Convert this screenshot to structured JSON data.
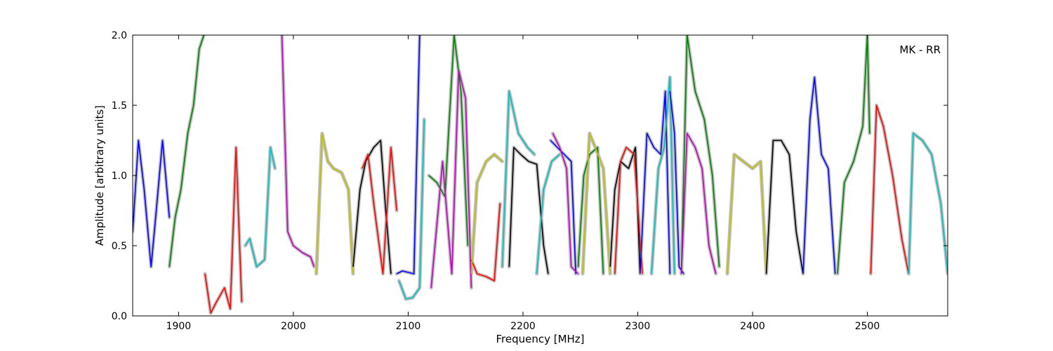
{
  "chart_data": {
    "type": "line",
    "title": "",
    "annotation": "MK - RR",
    "xlabel": "Frequency [MHz]",
    "ylabel": "Amplitude [arbitrary units]",
    "xlim": [
      1860,
      2570
    ],
    "ylim": [
      0.0,
      2.0
    ],
    "xticks": [
      1900,
      2000,
      2100,
      2200,
      2300,
      2400,
      2500
    ],
    "yticks": [
      0.0,
      0.5,
      1.0,
      1.5,
      2.0
    ],
    "ytick_labels": [
      "0.0",
      "0.5",
      "1.0",
      "1.5",
      "2.0"
    ],
    "grid": false,
    "legend": "none",
    "envelope_color": "#bfbfbf",
    "segments": [
      {
        "color": "#0000ff",
        "x": [
          1860,
          1865,
          1870,
          1876,
          1880,
          1886,
          1892
        ],
        "y": [
          0.6,
          1.25,
          0.9,
          0.35,
          0.7,
          1.25,
          0.7
        ]
      },
      {
        "color": "#008000",
        "x": [
          1892,
          1897,
          1902,
          1908,
          1913,
          1918,
          1922
        ],
        "y": [
          0.35,
          0.7,
          0.9,
          1.3,
          1.5,
          1.9,
          2.0
        ]
      },
      {
        "color": "#ff0000",
        "x": [
          1923,
          1928,
          1933,
          1940,
          1945,
          1950,
          1955
        ],
        "y": [
          0.3,
          0.02,
          0.1,
          0.2,
          0.05,
          1.2,
          0.1
        ]
      },
      {
        "color": "#00bfbf",
        "x": [
          1958,
          1962,
          1968,
          1975,
          1980,
          1984
        ],
        "y": [
          0.5,
          0.55,
          0.35,
          0.4,
          1.2,
          1.05
        ]
      },
      {
        "color": "#bf00bf",
        "x": [
          1990,
          1995,
          2000,
          2008,
          2015,
          2018
        ],
        "y": [
          2.0,
          0.6,
          0.5,
          0.45,
          0.42,
          0.35
        ]
      },
      {
        "color": "#bfbf00",
        "x": [
          2020,
          2025,
          2030,
          2035,
          2042,
          2048,
          2052
        ],
        "y": [
          0.3,
          1.3,
          1.1,
          1.05,
          1.02,
          0.9,
          0.3
        ]
      },
      {
        "color": "#000000",
        "x": [
          2052,
          2058,
          2063,
          2070,
          2076,
          2080,
          2085
        ],
        "y": [
          0.35,
          0.9,
          1.1,
          1.2,
          1.25,
          0.8,
          0.3
        ]
      },
      {
        "color": "#ff0000",
        "x": [
          2060,
          2065,
          2070,
          2078,
          2085,
          2090
        ],
        "y": [
          1.05,
          1.15,
          0.8,
          0.3,
          1.2,
          0.75
        ]
      },
      {
        "color": "#0000ff",
        "x": [
          2090,
          2095,
          2100,
          2105,
          2110
        ],
        "y": [
          0.3,
          0.32,
          0.31,
          0.3,
          2.0
        ]
      },
      {
        "color": "#00bfbf",
        "x": [
          2092,
          2098,
          2104,
          2110,
          2114
        ],
        "y": [
          0.25,
          0.12,
          0.13,
          0.2,
          1.4
        ]
      },
      {
        "color": "#008000",
        "x": [
          2118,
          2125,
          2132,
          2140,
          2146,
          2152
        ],
        "y": [
          1.0,
          0.95,
          0.85,
          2.0,
          1.6,
          0.5
        ]
      },
      {
        "color": "#bf00bf",
        "x": [
          2120,
          2130,
          2138,
          2144,
          2150,
          2155
        ],
        "y": [
          0.2,
          1.1,
          0.3,
          1.75,
          1.55,
          0.2
        ]
      },
      {
        "color": "#ff0000",
        "x": [
          2155,
          2160,
          2168,
          2175,
          2180
        ],
        "y": [
          0.4,
          0.3,
          0.28,
          0.25,
          0.8
        ]
      },
      {
        "color": "#bfbf00",
        "x": [
          2155,
          2160,
          2168,
          2175,
          2182
        ],
        "y": [
          0.3,
          0.95,
          1.1,
          1.15,
          1.1
        ]
      },
      {
        "color": "#00bfbf",
        "x": [
          2182,
          2188,
          2196,
          2204,
          2210
        ],
        "y": [
          0.35,
          1.6,
          1.3,
          1.2,
          1.15
        ]
      },
      {
        "color": "#000000",
        "x": [
          2188,
          2192,
          2198,
          2205,
          2212,
          2218,
          2222
        ],
        "y": [
          0.35,
          1.2,
          1.15,
          1.1,
          1.08,
          0.5,
          0.3
        ]
      },
      {
        "color": "#00bfbf",
        "x": [
          2212,
          2218,
          2225,
          2232
        ],
        "y": [
          0.3,
          0.9,
          1.1,
          1.15
        ]
      },
      {
        "color": "#0000ff",
        "x": [
          2224,
          2230,
          2236,
          2242,
          2246
        ],
        "y": [
          1.25,
          1.2,
          1.15,
          1.1,
          0.3
        ]
      },
      {
        "color": "#bf00bf",
        "x": [
          2226,
          2232,
          2238,
          2242,
          2248
        ],
        "y": [
          1.3,
          1.2,
          1.05,
          0.35,
          0.3
        ]
      },
      {
        "color": "#008000",
        "x": [
          2248,
          2253,
          2258,
          2265,
          2270
        ],
        "y": [
          0.35,
          1.0,
          1.15,
          1.2,
          0.3
        ]
      },
      {
        "color": "#bfbf00",
        "x": [
          2252,
          2258,
          2263,
          2270,
          2276
        ],
        "y": [
          0.3,
          1.3,
          1.2,
          1.05,
          0.3
        ]
      },
      {
        "color": "#000000",
        "x": [
          2276,
          2280,
          2285,
          2292,
          2298,
          2302
        ],
        "y": [
          0.35,
          0.9,
          1.1,
          1.05,
          1.2,
          0.3
        ]
      },
      {
        "color": "#ff0000",
        "x": [
          2280,
          2285,
          2290,
          2297,
          2304
        ],
        "y": [
          0.3,
          1.1,
          1.2,
          1.15,
          0.3
        ]
      },
      {
        "color": "#0000ff",
        "x": [
          2302,
          2308,
          2314,
          2320,
          2324,
          2328
        ],
        "y": [
          0.3,
          1.3,
          1.2,
          1.15,
          1.6,
          0.3
        ]
      },
      {
        "color": "#00bfbf",
        "x": [
          2312,
          2318,
          2323,
          2328,
          2332
        ],
        "y": [
          0.3,
          1.05,
          1.2,
          1.7,
          0.3
        ]
      },
      {
        "color": "#0000ff",
        "x": [
          2328,
          2332,
          2336,
          2340
        ],
        "y": [
          1.6,
          1.3,
          0.35,
          0.3
        ]
      },
      {
        "color": "#008000",
        "x": [
          2338,
          2343,
          2350,
          2358,
          2365,
          2371
        ],
        "y": [
          0.3,
          2.0,
          1.6,
          1.4,
          1.0,
          0.35
        ]
      },
      {
        "color": "#bf00bf",
        "x": [
          2338,
          2343,
          2350,
          2356,
          2362,
          2368
        ],
        "y": [
          0.3,
          1.3,
          1.2,
          1.05,
          0.5,
          0.3
        ]
      },
      {
        "color": "#bfbf00",
        "x": [
          2378,
          2384,
          2392,
          2400,
          2407,
          2412
        ],
        "y": [
          0.3,
          1.15,
          1.1,
          1.05,
          1.1,
          0.3
        ]
      },
      {
        "color": "#000000",
        "x": [
          2412,
          2418,
          2425,
          2432,
          2438,
          2444
        ],
        "y": [
          0.3,
          1.25,
          1.25,
          1.15,
          0.6,
          0.3
        ]
      },
      {
        "color": "#0000ff",
        "x": [
          2444,
          2450,
          2454,
          2460,
          2466,
          2472
        ],
        "y": [
          0.3,
          1.4,
          1.7,
          1.15,
          1.05,
          0.3
        ]
      },
      {
        "color": "#008000",
        "x": [
          2474,
          2480,
          2488,
          2496,
          2500,
          2502
        ],
        "y": [
          0.3,
          0.95,
          1.1,
          1.35,
          2.0,
          1.3
        ]
      },
      {
        "color": "#ff0000",
        "x": [
          2503,
          2508,
          2514,
          2522,
          2530,
          2536
        ],
        "y": [
          0.3,
          1.5,
          1.35,
          1.0,
          0.55,
          0.3
        ]
      },
      {
        "color": "#00bfbf",
        "x": [
          2536,
          2540,
          2548,
          2556,
          2564,
          2570
        ],
        "y": [
          0.3,
          1.3,
          1.25,
          1.15,
          0.8,
          0.3
        ]
      }
    ]
  }
}
